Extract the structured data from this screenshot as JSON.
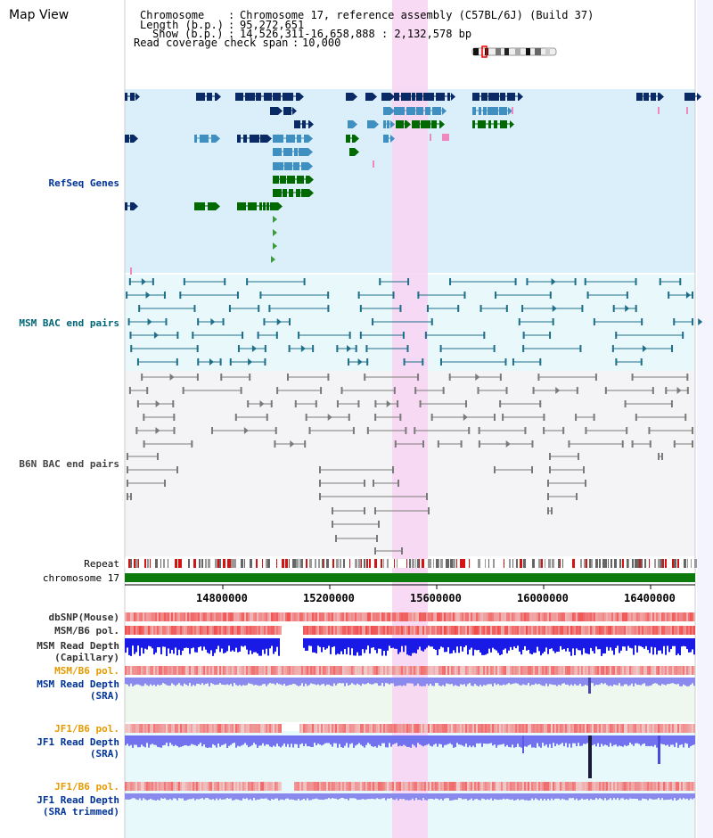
{
  "window": {
    "title": "Map View"
  },
  "info": {
    "chromosome_key": "Chromosome",
    "chromosome_val": "Chromosome 17, reference assembly (C57BL/6J) (Build 37)",
    "length_key": "Length (b.p.)",
    "length_val": "95,272,651",
    "show_key": "Show (b.p.)",
    "show_val": "14,526,311-16,658,888 : 2,132,578 bp",
    "span_key": "Read coverage check span",
    "span_val": "10,000"
  },
  "tracks": {
    "refseq": "RefSeq Genes",
    "msm_bac": "MSM BAC end pairs",
    "b6n_bac": "B6N BAC end pairs",
    "repeat": "Repeat",
    "chromosome": "chromosome 17",
    "dbsnp": "dbSNP(Mouse)",
    "msm_b6_pol": "MSM/B6 pol.",
    "msm_depth_cap": "MSM Read Depth\n(Capillary)",
    "msm_b6_pol2": "MSM/B6 pol.",
    "msm_depth_sra": "MSM Read Depth\n(SRA)",
    "jf1_b6_pol": "JF1/B6 pol.",
    "jf1_depth_sra": "JF1 Read Depth\n(SRA)",
    "jf1_b6_pol2": "JF1/B6 pol.",
    "jf1_depth_trim": "JF1 Read Depth\n(SRA trimmed)"
  },
  "axis": {
    "ticks": [
      "14800000",
      "15200000",
      "15600000",
      "16000000",
      "16400000"
    ]
  },
  "colors": {
    "refseq_bg": "#dbeffb",
    "msm_bg": "#e8f8fb",
    "b6n_bg": "#f4f4f7",
    "highlight": "#f8d4f2",
    "gene_dark": "#0a2a66",
    "gene_mid": "#3f8fc0",
    "gene_green": "#006a00",
    "chromosome_bar": "#0d7a0d"
  }
}
